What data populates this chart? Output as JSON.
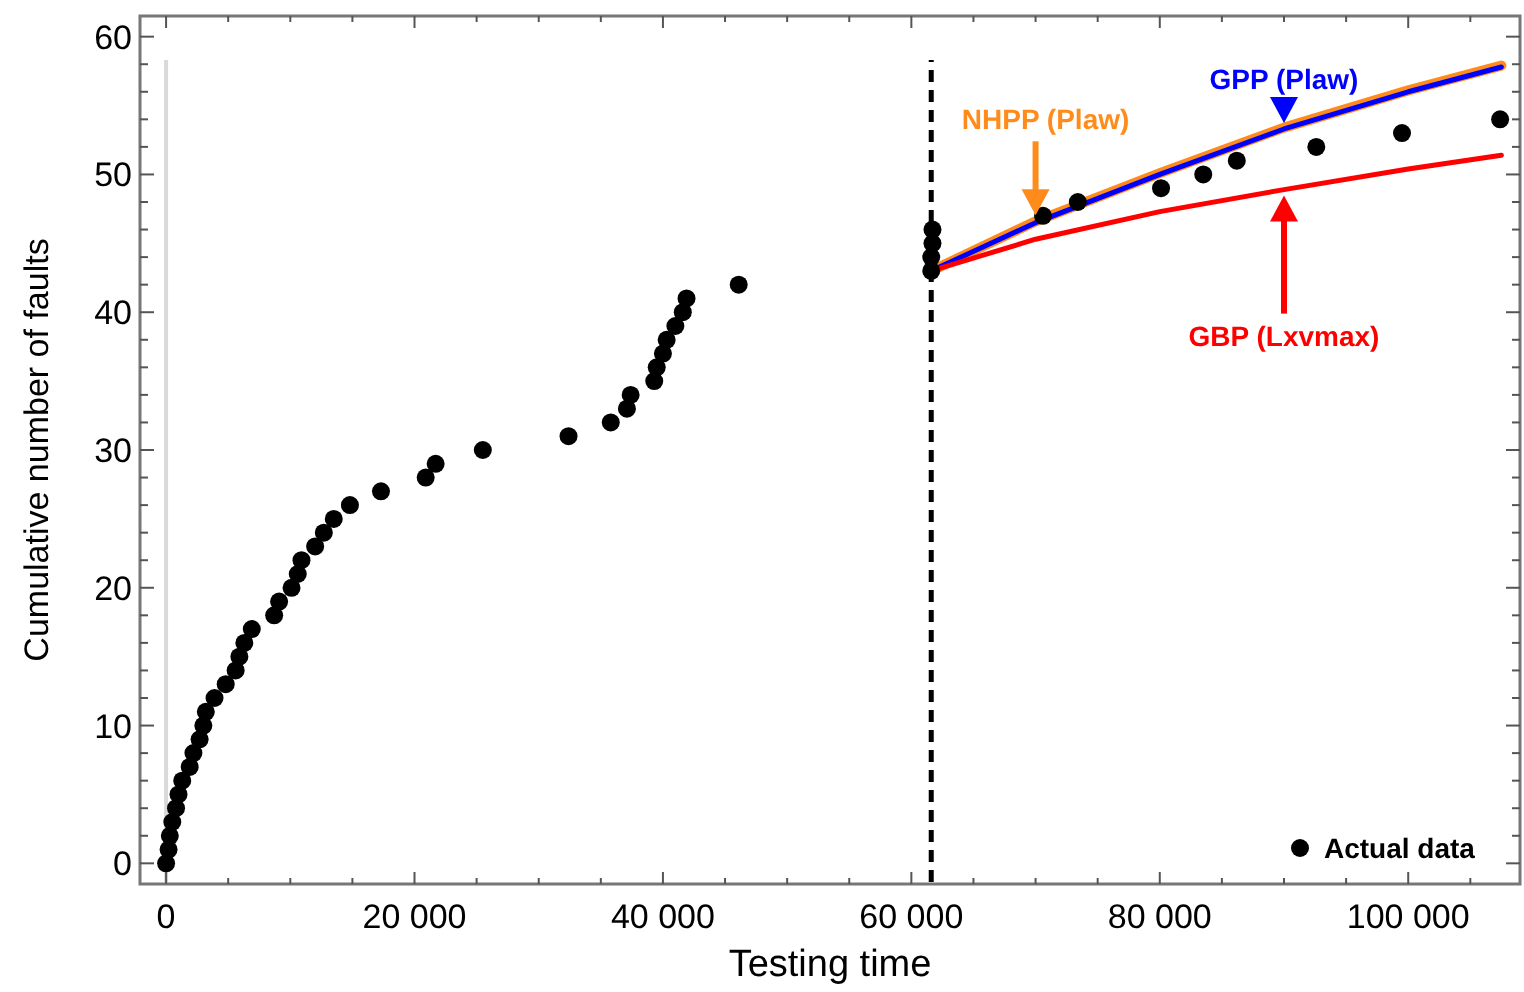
{
  "chart_data": {
    "type": "scatter",
    "xlabel": "Testing time",
    "ylabel": "Cumulative number of faults",
    "xlim": [
      -2100,
      109000
    ],
    "ylim": [
      -1.5,
      61.5
    ],
    "xticks": [
      0,
      {
        "value": 5000,
        "label": null
      },
      {
        "value": 10000,
        "label": null
      },
      {
        "value": 15000,
        "label": null
      },
      {
        "value": 20000,
        "label": "20 000"
      },
      {
        "value": 25000,
        "label": null
      },
      {
        "value": 30000,
        "label": null
      },
      {
        "value": 35000,
        "label": null
      },
      {
        "value": 40000,
        "label": "40 000"
      },
      {
        "value": 45000,
        "label": null
      },
      {
        "value": 50000,
        "label": null
      },
      {
        "value": 55000,
        "label": null
      },
      {
        "value": 60000,
        "label": "60 000"
      },
      {
        "value": 65000,
        "label": null
      },
      {
        "value": 70000,
        "label": null
      },
      {
        "value": 75000,
        "label": null
      },
      {
        "value": 80000,
        "label": "80 000"
      },
      {
        "value": 85000,
        "label": null
      },
      {
        "value": 90000,
        "label": null
      },
      {
        "value": 95000,
        "label": null
      },
      {
        "value": 100000,
        "label": "100 000"
      },
      {
        "value": 105000,
        "label": null
      }
    ],
    "yticks": [
      0,
      {
        "value": 2,
        "label": null
      },
      {
        "value": 4,
        "label": null
      },
      {
        "value": 6,
        "label": null
      },
      {
        "value": 8,
        "label": null
      },
      10,
      {
        "value": 12,
        "label": null
      },
      {
        "value": 14,
        "label": null
      },
      {
        "value": 16,
        "label": null
      },
      {
        "value": 18,
        "label": null
      },
      20,
      {
        "value": 22,
        "label": null
      },
      {
        "value": 24,
        "label": null
      },
      {
        "value": 26,
        "label": null
      },
      {
        "value": 28,
        "label": null
      },
      30,
      {
        "value": 32,
        "label": null
      },
      {
        "value": 34,
        "label": null
      },
      {
        "value": 36,
        "label": null
      },
      {
        "value": 38,
        "label": null
      },
      40,
      {
        "value": 42,
        "label": null
      },
      {
        "value": 44,
        "label": null
      },
      {
        "value": 46,
        "label": null
      },
      {
        "value": 48,
        "label": null
      },
      50,
      {
        "value": 52,
        "label": null
      },
      {
        "value": 54,
        "label": null
      },
      {
        "value": 56,
        "label": null
      },
      {
        "value": 58,
        "label": null
      },
      60
    ],
    "grid": false,
    "legend": "bottom right",
    "marker": "circle",
    "ref_lines": [
      {
        "axis": "x",
        "value": 0,
        "color": "#d9d9d9",
        "line_style": "solid"
      },
      {
        "axis": "x",
        "value": 61600,
        "color": "#000000",
        "line_style": "dashed"
      }
    ],
    "series": [
      {
        "name": "NHPP (Plaw)",
        "type": "line",
        "color": "#ff8c1a",
        "marker": "none",
        "x": [
          61600,
          70000,
          80000,
          90000,
          100000,
          107500
        ],
        "values": [
          43,
          46.6,
          50.1,
          53.4,
          56.1,
          57.9
        ]
      },
      {
        "name": "GPP (Plaw)",
        "type": "line",
        "color": "#0000ff",
        "marker": "none",
        "x": [
          61600,
          70000,
          80000,
          90000,
          100000,
          107500
        ],
        "values": [
          43,
          46.5,
          50.0,
          53.3,
          56.0,
          57.8
        ]
      },
      {
        "name": "GBP (Lxvmax)",
        "type": "line",
        "color": "#ff0000",
        "marker": "none",
        "x": [
          61600,
          70000,
          80000,
          90000,
          100000,
          107500
        ],
        "values": [
          43,
          45.3,
          47.3,
          48.9,
          50.4,
          51.4
        ]
      },
      {
        "name": "Actual data",
        "color": "#000000",
        "x": [
          0,
          200,
          300,
          500,
          800,
          1000,
          1300,
          1900,
          2200,
          2700,
          3000,
          3200,
          3900,
          4800,
          5600,
          5900,
          6300,
          6900,
          8700,
          9100,
          10100,
          10600,
          10900,
          12000,
          12700,
          13500,
          14800,
          17300,
          20900,
          21700,
          25500,
          32400,
          35800,
          37100,
          37400,
          39300,
          39500,
          40000,
          40300,
          41000,
          41600,
          41900,
          46100,
          61600,
          61600,
          61700,
          61700,
          70600,
          73400,
          80100,
          83500,
          86200,
          92600,
          99500,
          107400
        ],
        "values": [
          0,
          1,
          2,
          3,
          4,
          5,
          6,
          7,
          8,
          9,
          10,
          11,
          12,
          13,
          14,
          15,
          16,
          17,
          18,
          19,
          20,
          21,
          22,
          23,
          24,
          25,
          26,
          27,
          28,
          29,
          30,
          31,
          32,
          33,
          34,
          35,
          36,
          37,
          38,
          39,
          40,
          41,
          42,
          43,
          44,
          45,
          46,
          47,
          48,
          49,
          50,
          51,
          52,
          53,
          54
        ]
      }
    ]
  }
}
